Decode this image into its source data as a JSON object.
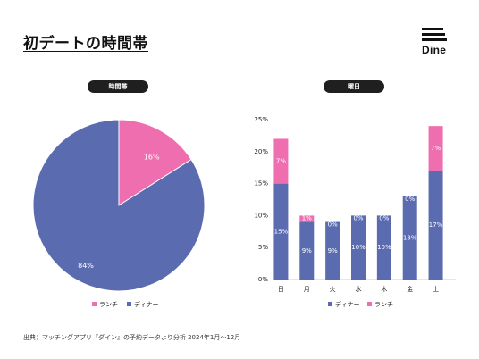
{
  "title": "初デートの時間帯",
  "logo": {
    "text": "Dine"
  },
  "source": "出典：マッチングアプリ『ダイン』の予約データより分析 2024年1月〜12月",
  "colors": {
    "dinner": "#5b6bb0",
    "lunch": "#ef6eb0"
  },
  "chart_data": [
    {
      "type": "pie",
      "title": "時間帯",
      "labels": [
        "ランチ",
        "ディナー"
      ],
      "values": [
        16,
        84
      ],
      "data_labels": [
        "16%",
        "84%"
      ],
      "legend": [
        "ランチ",
        "ディナー"
      ],
      "legend_position": "bottom"
    },
    {
      "type": "bar",
      "stacked": true,
      "title": "曜日",
      "categories": [
        "日",
        "月",
        "火",
        "水",
        "木",
        "金",
        "土"
      ],
      "series": [
        {
          "name": "ディナー",
          "values": [
            15,
            9,
            9,
            10,
            10,
            13,
            17
          ],
          "labels": [
            "15%",
            "9%",
            "9%",
            "10%",
            "10%",
            "13%",
            "17%"
          ]
        },
        {
          "name": "ランチ",
          "values": [
            7,
            1,
            0,
            0,
            0,
            0,
            7
          ],
          "labels": [
            "7%",
            "1%",
            "0%",
            "0%",
            "0%",
            "0%",
            "7%"
          ]
        }
      ],
      "ylim": [
        0,
        25
      ],
      "yticks": [
        "0%",
        "5%",
        "10%",
        "15%",
        "20%",
        "25%"
      ],
      "grid": false,
      "legend": [
        "ディナー",
        "ランチ"
      ],
      "legend_position": "bottom"
    }
  ]
}
